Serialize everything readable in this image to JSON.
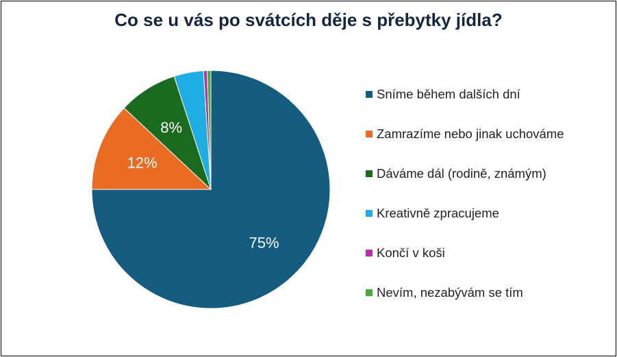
{
  "chart_data": {
    "type": "pie",
    "title": "Co se u vás po svátcích děje s přebytky jídla?",
    "start": "12 o'clock, clockwise",
    "slices": [
      {
        "label": "Sníme během dalších dní",
        "value": 75,
        "value_label": "75%",
        "color": "#135c80",
        "label_color": "#ffffff"
      },
      {
        "label": "Zamrazíme nebo jinak uchováme",
        "value": 12,
        "value_label": "12%",
        "color": "#e96c22",
        "label_color": "#ffffff"
      },
      {
        "label": "Dáváme dál (rodině, známým)",
        "value": 8,
        "value_label": "8%",
        "color": "#1a6b1f",
        "label_color": "#ffffff"
      },
      {
        "label": "Kreativně zpracujeme",
        "value": 4,
        "value_label": "",
        "color": "#1eaee4",
        "label_color": "#ffffff"
      },
      {
        "label": "Končí v koši",
        "value": 0.5,
        "value_label": "",
        "color": "#b82fa9",
        "label_color": "#ffffff"
      },
      {
        "label": "Nevím, nezabývám se tím",
        "value": 0.5,
        "value_label": "",
        "color": "#46aa36",
        "label_color": "#ffffff"
      }
    ],
    "legend_position": "right"
  }
}
